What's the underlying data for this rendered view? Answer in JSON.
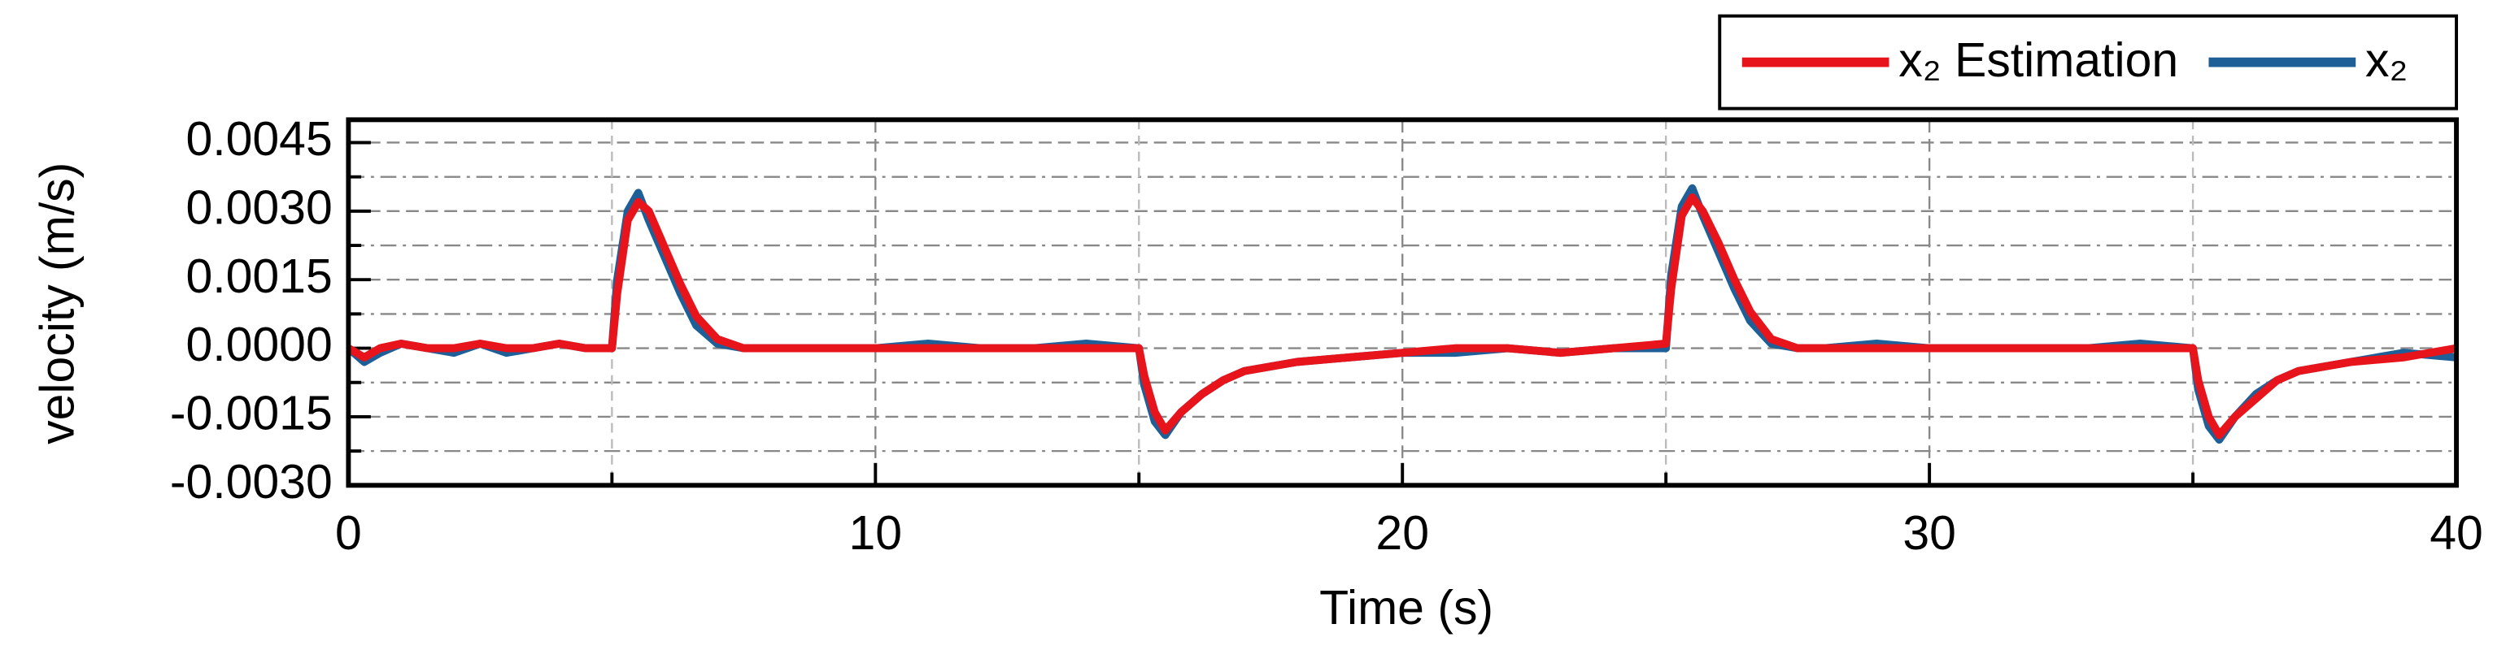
{
  "chart_data": {
    "type": "line",
    "xlabel": "Time (s)",
    "ylabel": "velocity (m/s)",
    "x": [
      0,
      0.3,
      0.6,
      1,
      1.5,
      2,
      2.5,
      3,
      3.5,
      4,
      4.5,
      5,
      5.1,
      5.3,
      5.5,
      5.7,
      6,
      6.3,
      6.6,
      7,
      7.5,
      8,
      9,
      10,
      11,
      12,
      13,
      14,
      15,
      15.1,
      15.3,
      15.5,
      15.8,
      16.2,
      16.6,
      17,
      18,
      19,
      20,
      21,
      22,
      23,
      24,
      25,
      25.1,
      25.3,
      25.5,
      25.7,
      26,
      26.3,
      26.6,
      27,
      27.5,
      28,
      29,
      30,
      31,
      32,
      33,
      34,
      35,
      35.1,
      35.3,
      35.5,
      35.8,
      36.2,
      36.6,
      37,
      38,
      39,
      40
    ],
    "series": [
      {
        "name": "x₂ Estimation",
        "color": "#e8141c",
        "values": [
          0,
          -0.0002,
          0,
          0.0001,
          0,
          0,
          0.0001,
          0,
          0,
          0.0001,
          0,
          0,
          0.0012,
          0.0028,
          0.0032,
          0.003,
          0.0022,
          0.0014,
          0.0007,
          0.0002,
          0,
          0,
          0,
          0,
          0,
          0,
          0,
          0,
          0,
          -0.0006,
          -0.0014,
          -0.0018,
          -0.0014,
          -0.001,
          -0.0007,
          -0.0005,
          -0.0003,
          -0.0002,
          -0.0001,
          0,
          0,
          -0.0001,
          0,
          0.0001,
          0.0013,
          0.0029,
          0.0033,
          0.003,
          0.0023,
          0.0015,
          0.0008,
          0.0002,
          0,
          0,
          0,
          0,
          0,
          0,
          0,
          0,
          0,
          -0.0007,
          -0.0015,
          -0.0019,
          -0.0015,
          -0.0011,
          -0.0007,
          -0.0005,
          -0.0003,
          -0.0002,
          0
        ]
      },
      {
        "name": "x₂",
        "color": "#1f5f98",
        "values": [
          0,
          -0.0003,
          -0.0001,
          0.0001,
          0,
          -0.0001,
          0.0001,
          -0.0001,
          0,
          0.0001,
          0,
          0,
          0.0015,
          0.003,
          0.0034,
          0.0028,
          0.002,
          0.0012,
          0.0005,
          0.0001,
          0,
          0,
          0,
          0,
          0.0001,
          0,
          0,
          0.0001,
          0,
          -0.0008,
          -0.0016,
          -0.0019,
          -0.0014,
          -0.001,
          -0.0007,
          -0.0005,
          -0.0003,
          -0.0002,
          -0.0001,
          -0.0001,
          0,
          -0.0001,
          0,
          0,
          0.0016,
          0.0031,
          0.0035,
          0.0029,
          0.0021,
          0.0013,
          0.0006,
          0.0001,
          0,
          0,
          0.0001,
          0,
          0,
          0,
          0,
          0.0001,
          0,
          -0.0009,
          -0.0017,
          -0.002,
          -0.0015,
          -0.001,
          -0.0007,
          -0.0005,
          -0.0003,
          -0.0001,
          -0.0002
        ]
      }
    ],
    "xlim": [
      0,
      40
    ],
    "ylim": [
      -0.003,
      0.005
    ],
    "xticks": [
      0,
      10,
      20,
      30,
      40
    ],
    "xminorticks": [
      5,
      15,
      25,
      35
    ],
    "yticks": [
      {
        "value": -0.003,
        "label": "-0.0030"
      },
      {
        "value": -0.0015,
        "label": "-0.0015"
      },
      {
        "value": 0,
        "label": "0.0000"
      },
      {
        "value": 0.0015,
        "label": "0.0015"
      },
      {
        "value": 0.003,
        "label": "0.0030"
      },
      {
        "value": 0.0045,
        "label": "0.0045"
      }
    ],
    "yminorticks": [
      -0.00225,
      -0.00075,
      0.00075,
      0.00225,
      0.00375
    ],
    "grid": true,
    "legend": "top-right"
  }
}
